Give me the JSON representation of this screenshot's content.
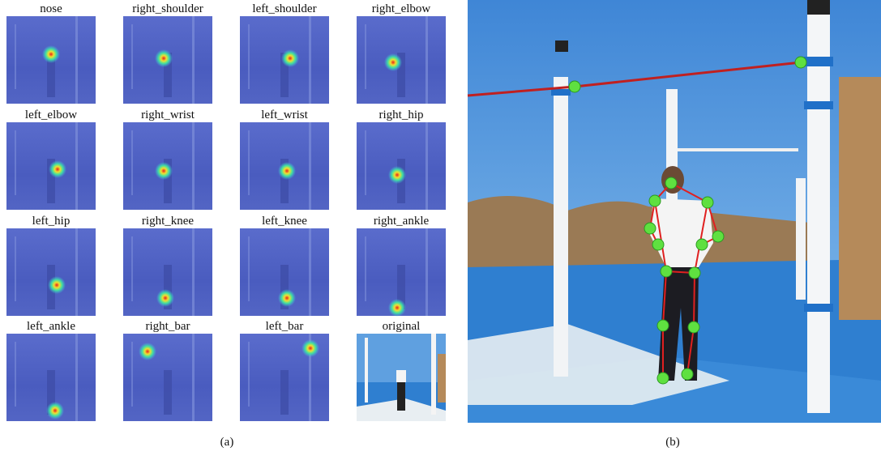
{
  "figure": {
    "panel_a": {
      "label": "(a)",
      "tiles": [
        "nose",
        "right_shoulder",
        "left_shoulder",
        "right_elbow",
        "left_elbow",
        "right_wrist",
        "left_wrist",
        "right_hip",
        "left_hip",
        "right_knee",
        "left_knee",
        "right_ankle",
        "left_ankle",
        "right_bar",
        "left_bar",
        "original"
      ]
    },
    "panel_b": {
      "label": "(b)"
    }
  }
}
